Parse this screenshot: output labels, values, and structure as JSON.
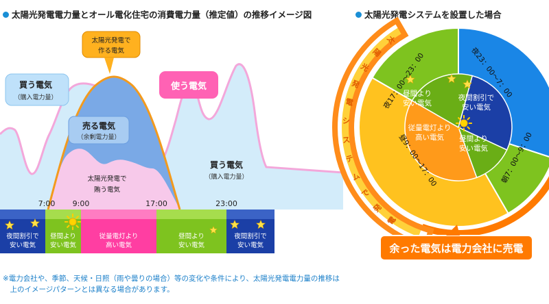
{
  "left_title": "太陽光発電電力量とオール電化住宅の消費電力量（推定値）の推移イメージ図",
  "right_title": "太陽光発電システムを設置した場合",
  "callouts": {
    "solar_top": [
      "太陽光発電で",
      "作る電気"
    ],
    "buy_left": [
      "買う電気",
      "（購入電力量）"
    ],
    "use": "使う電気",
    "sell": [
      "売る電気",
      "（余剰電力量）"
    ],
    "self": [
      "太陽光発電で",
      "賄う電気"
    ],
    "buy_right": [
      "買う電気",
      "（購入電力量）"
    ]
  },
  "times": [
    "7:00",
    "9:00",
    "17:00",
    "23:00"
  ],
  "bands": [
    [
      "夜間割引で",
      "安い電気"
    ],
    [
      "昼間より",
      "安い電気"
    ],
    [
      "従量電灯より",
      "高い電気"
    ],
    [
      "昼間より",
      "安い電気"
    ],
    [
      "夜間割引で",
      "安い電気"
    ]
  ],
  "colors": {
    "night": "#1b3fa6",
    "morning": "#7ec31f",
    "day": "#ff3ea2",
    "solar": "#ff9a1a",
    "consume": "#f3cdee",
    "sky": "#d3ecfa"
  },
  "pie": {
    "outer": [
      "夜23：00〜7：00",
      "朝7：00〜9：00",
      "昼9：00〜17：00",
      "夜17：00〜23：00"
    ],
    "inner": [
      [
        "夜間割引で",
        "安い電気"
      ],
      [
        "昼間より",
        "安い電気"
      ],
      [
        "従量電灯より",
        "高い電気"
      ],
      [
        "昼間より",
        "安い電気"
      ]
    ],
    "arc_label": "太陽光発電システムで発電",
    "sell_button": "余った電気は電力会社に売電"
  },
  "icons": [
    "star-icon",
    "sun-icon"
  ],
  "note": [
    "※電力会社や、季節、天候・日照（雨や曇りの場合）等の変化や条件により、太陽光発電電力量の推移は",
    "　上のイメージパターンとは異なる場合があります。"
  ]
}
